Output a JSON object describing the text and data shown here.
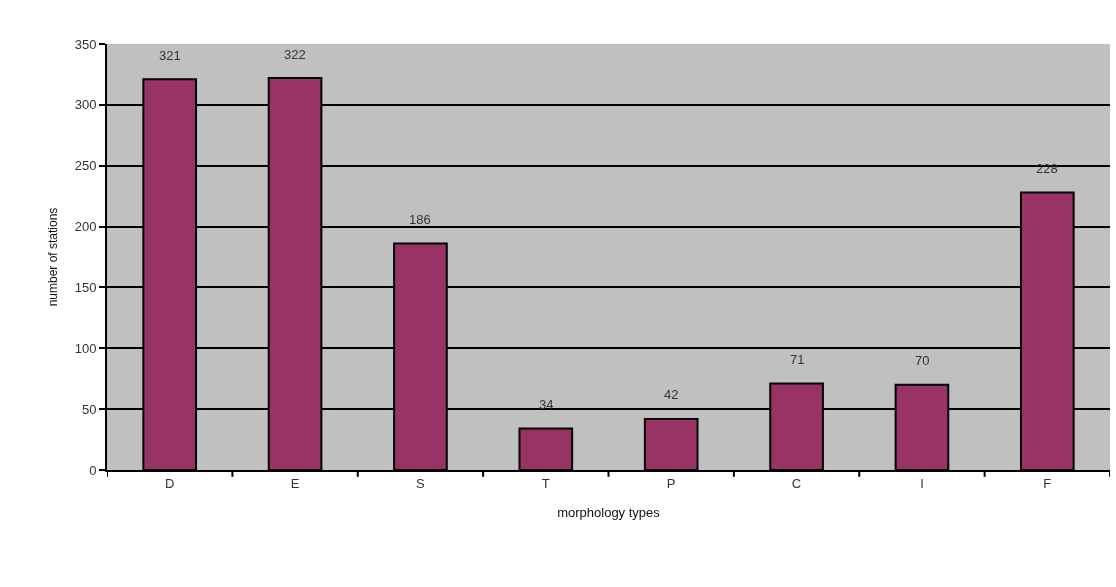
{
  "chart_data": {
    "type": "bar",
    "xlabel": "morphology types",
    "ylabel": "number of stations",
    "categories": [
      "D",
      "E",
      "S",
      "T",
      "P",
      "C",
      "I",
      "F"
    ],
    "values": [
      321,
      322,
      186,
      34,
      42,
      71,
      70,
      228
    ],
    "color": "#993366",
    "ylim": [
      0,
      350
    ],
    "yticks": [
      0,
      50,
      100,
      150,
      200,
      250,
      300,
      350
    ],
    "grid": "y",
    "data_labels": true
  }
}
